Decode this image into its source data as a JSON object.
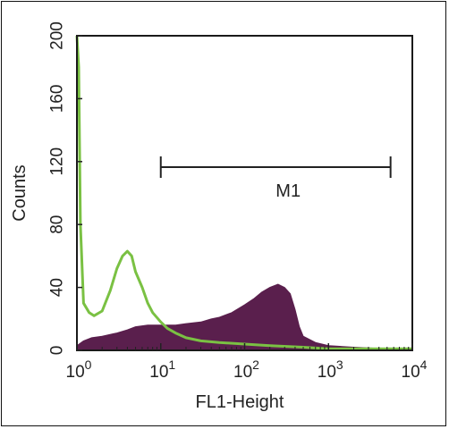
{
  "chart_data": {
    "type": "area",
    "xlabel": "FL1-Height",
    "ylabel": "Counts",
    "x_scale": "log",
    "xlim": [
      1,
      10000
    ],
    "ylim": [
      0,
      200
    ],
    "x_ticks": [
      {
        "base": "10",
        "exp": "0"
      },
      {
        "base": "10",
        "exp": "1"
      },
      {
        "base": "10",
        "exp": "2"
      },
      {
        "base": "10",
        "exp": "3"
      },
      {
        "base": "10",
        "exp": "4"
      }
    ],
    "y_ticks": [
      "0",
      "40",
      "80",
      "120",
      "160",
      "200"
    ],
    "marker": {
      "label": "M1",
      "x_start": 10,
      "x_end": 5500
    },
    "series": [
      {
        "color": "#5a1f4d",
        "fill": true,
        "points": [
          [
            1.0,
            3
          ],
          [
            1.2,
            6
          ],
          [
            1.5,
            8
          ],
          [
            2,
            9
          ],
          [
            3,
            11
          ],
          [
            4,
            13
          ],
          [
            5,
            15
          ],
          [
            7,
            16
          ],
          [
            10,
            16
          ],
          [
            15,
            16
          ],
          [
            20,
            17
          ],
          [
            30,
            18
          ],
          [
            40,
            20
          ],
          [
            50,
            21
          ],
          [
            70,
            24
          ],
          [
            100,
            29
          ],
          [
            130,
            33
          ],
          [
            160,
            37
          ],
          [
            200,
            40
          ],
          [
            250,
            42
          ],
          [
            300,
            40
          ],
          [
            350,
            36
          ],
          [
            400,
            26
          ],
          [
            450,
            15
          ],
          [
            500,
            9
          ],
          [
            700,
            5
          ],
          [
            1000,
            3
          ],
          [
            2000,
            2
          ],
          [
            5000,
            1
          ],
          [
            10000,
            0
          ]
        ]
      },
      {
        "color": "#7ac143",
        "fill": false,
        "points": [
          [
            1.0,
            200
          ],
          [
            1.05,
            180
          ],
          [
            1.1,
            80
          ],
          [
            1.2,
            30
          ],
          [
            1.4,
            24
          ],
          [
            1.6,
            22
          ],
          [
            2,
            25
          ],
          [
            2.5,
            38
          ],
          [
            3,
            52
          ],
          [
            3.5,
            60
          ],
          [
            4,
            63
          ],
          [
            4.5,
            60
          ],
          [
            5,
            50
          ],
          [
            6,
            40
          ],
          [
            7,
            30
          ],
          [
            8,
            24
          ],
          [
            10,
            18
          ],
          [
            12,
            14
          ],
          [
            15,
            11
          ],
          [
            20,
            8
          ],
          [
            30,
            6
          ],
          [
            50,
            5
          ],
          [
            100,
            4
          ],
          [
            200,
            3
          ],
          [
            500,
            2
          ],
          [
            1000,
            1
          ],
          [
            3000,
            1
          ],
          [
            10000,
            1
          ]
        ]
      }
    ]
  }
}
